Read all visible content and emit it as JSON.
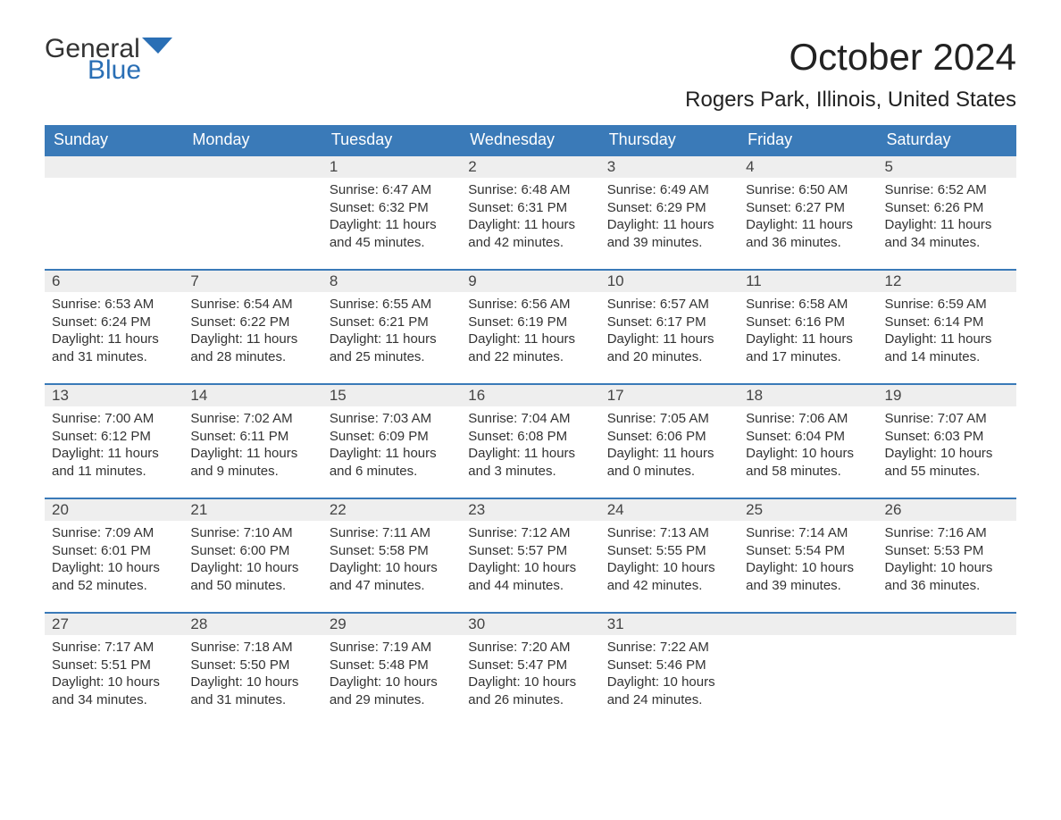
{
  "brand": {
    "general": "General",
    "blue": "Blue",
    "flag_color": "#2a6fb5"
  },
  "title": "October 2024",
  "location": "Rogers Park, Illinois, United States",
  "columns": [
    "Sunday",
    "Monday",
    "Tuesday",
    "Wednesday",
    "Thursday",
    "Friday",
    "Saturday"
  ],
  "colors": {
    "header_bg": "#3a7ab8",
    "header_text": "#ffffff",
    "daynum_bg": "#eeeeee",
    "day_border": "#3a7ab8",
    "text": "#333333",
    "background": "#ffffff"
  },
  "fonts": {
    "month_title_pt": 42,
    "location_pt": 24,
    "header_pt": 18,
    "daynum_pt": 17,
    "body_pt": 15
  },
  "layout": {
    "start_weekday_index": 2,
    "days_in_month": 31
  },
  "days": [
    {
      "n": 1,
      "sunrise": "6:47 AM",
      "sunset": "6:32 PM",
      "daylight": "11 hours and 45 minutes."
    },
    {
      "n": 2,
      "sunrise": "6:48 AM",
      "sunset": "6:31 PM",
      "daylight": "11 hours and 42 minutes."
    },
    {
      "n": 3,
      "sunrise": "6:49 AM",
      "sunset": "6:29 PM",
      "daylight": "11 hours and 39 minutes."
    },
    {
      "n": 4,
      "sunrise": "6:50 AM",
      "sunset": "6:27 PM",
      "daylight": "11 hours and 36 minutes."
    },
    {
      "n": 5,
      "sunrise": "6:52 AM",
      "sunset": "6:26 PM",
      "daylight": "11 hours and 34 minutes."
    },
    {
      "n": 6,
      "sunrise": "6:53 AM",
      "sunset": "6:24 PM",
      "daylight": "11 hours and 31 minutes."
    },
    {
      "n": 7,
      "sunrise": "6:54 AM",
      "sunset": "6:22 PM",
      "daylight": "11 hours and 28 minutes."
    },
    {
      "n": 8,
      "sunrise": "6:55 AM",
      "sunset": "6:21 PM",
      "daylight": "11 hours and 25 minutes."
    },
    {
      "n": 9,
      "sunrise": "6:56 AM",
      "sunset": "6:19 PM",
      "daylight": "11 hours and 22 minutes."
    },
    {
      "n": 10,
      "sunrise": "6:57 AM",
      "sunset": "6:17 PM",
      "daylight": "11 hours and 20 minutes."
    },
    {
      "n": 11,
      "sunrise": "6:58 AM",
      "sunset": "6:16 PM",
      "daylight": "11 hours and 17 minutes."
    },
    {
      "n": 12,
      "sunrise": "6:59 AM",
      "sunset": "6:14 PM",
      "daylight": "11 hours and 14 minutes."
    },
    {
      "n": 13,
      "sunrise": "7:00 AM",
      "sunset": "6:12 PM",
      "daylight": "11 hours and 11 minutes."
    },
    {
      "n": 14,
      "sunrise": "7:02 AM",
      "sunset": "6:11 PM",
      "daylight": "11 hours and 9 minutes."
    },
    {
      "n": 15,
      "sunrise": "7:03 AM",
      "sunset": "6:09 PM",
      "daylight": "11 hours and 6 minutes."
    },
    {
      "n": 16,
      "sunrise": "7:04 AM",
      "sunset": "6:08 PM",
      "daylight": "11 hours and 3 minutes."
    },
    {
      "n": 17,
      "sunrise": "7:05 AM",
      "sunset": "6:06 PM",
      "daylight": "11 hours and 0 minutes."
    },
    {
      "n": 18,
      "sunrise": "7:06 AM",
      "sunset": "6:04 PM",
      "daylight": "10 hours and 58 minutes."
    },
    {
      "n": 19,
      "sunrise": "7:07 AM",
      "sunset": "6:03 PM",
      "daylight": "10 hours and 55 minutes."
    },
    {
      "n": 20,
      "sunrise": "7:09 AM",
      "sunset": "6:01 PM",
      "daylight": "10 hours and 52 minutes."
    },
    {
      "n": 21,
      "sunrise": "7:10 AM",
      "sunset": "6:00 PM",
      "daylight": "10 hours and 50 minutes."
    },
    {
      "n": 22,
      "sunrise": "7:11 AM",
      "sunset": "5:58 PM",
      "daylight": "10 hours and 47 minutes."
    },
    {
      "n": 23,
      "sunrise": "7:12 AM",
      "sunset": "5:57 PM",
      "daylight": "10 hours and 44 minutes."
    },
    {
      "n": 24,
      "sunrise": "7:13 AM",
      "sunset": "5:55 PM",
      "daylight": "10 hours and 42 minutes."
    },
    {
      "n": 25,
      "sunrise": "7:14 AM",
      "sunset": "5:54 PM",
      "daylight": "10 hours and 39 minutes."
    },
    {
      "n": 26,
      "sunrise": "7:16 AM",
      "sunset": "5:53 PM",
      "daylight": "10 hours and 36 minutes."
    },
    {
      "n": 27,
      "sunrise": "7:17 AM",
      "sunset": "5:51 PM",
      "daylight": "10 hours and 34 minutes."
    },
    {
      "n": 28,
      "sunrise": "7:18 AM",
      "sunset": "5:50 PM",
      "daylight": "10 hours and 31 minutes."
    },
    {
      "n": 29,
      "sunrise": "7:19 AM",
      "sunset": "5:48 PM",
      "daylight": "10 hours and 29 minutes."
    },
    {
      "n": 30,
      "sunrise": "7:20 AM",
      "sunset": "5:47 PM",
      "daylight": "10 hours and 26 minutes."
    },
    {
      "n": 31,
      "sunrise": "7:22 AM",
      "sunset": "5:46 PM",
      "daylight": "10 hours and 24 minutes."
    }
  ],
  "labels": {
    "sunrise": "Sunrise:",
    "sunset": "Sunset:",
    "daylight": "Daylight:"
  }
}
